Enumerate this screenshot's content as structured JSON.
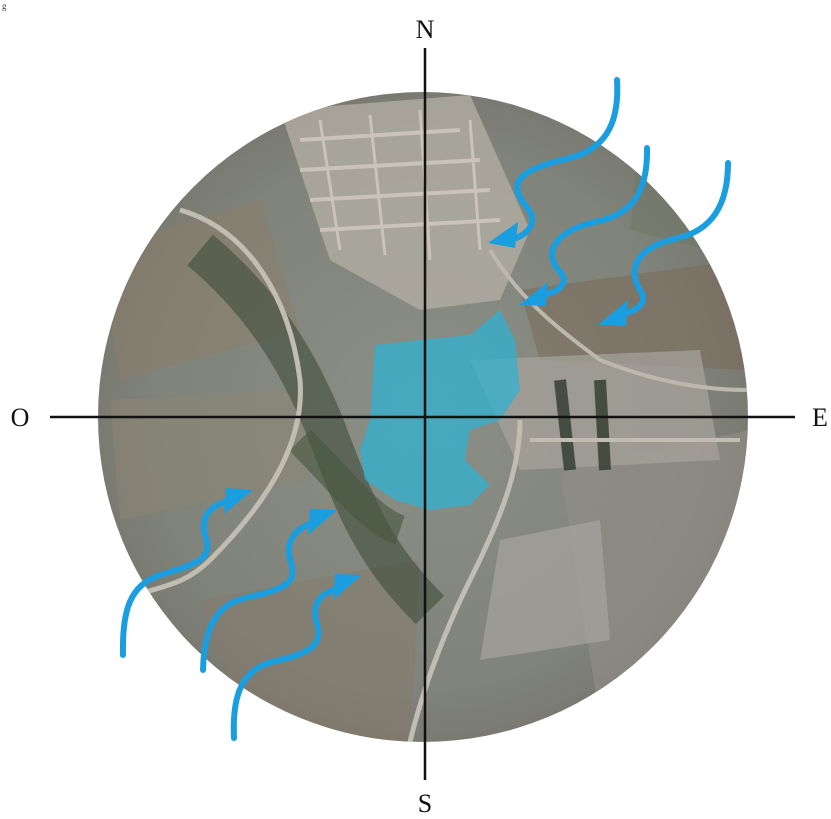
{
  "corner_mark": "g",
  "compass": {
    "north": "N",
    "south": "S",
    "west": "O",
    "east": "E"
  },
  "colors": {
    "wind_arrow": "#1a9ee0",
    "water_area": "#2bb3d6",
    "axis": "#111111"
  },
  "wind_direction_icons": [
    "wind-arrow-icon"
  ]
}
